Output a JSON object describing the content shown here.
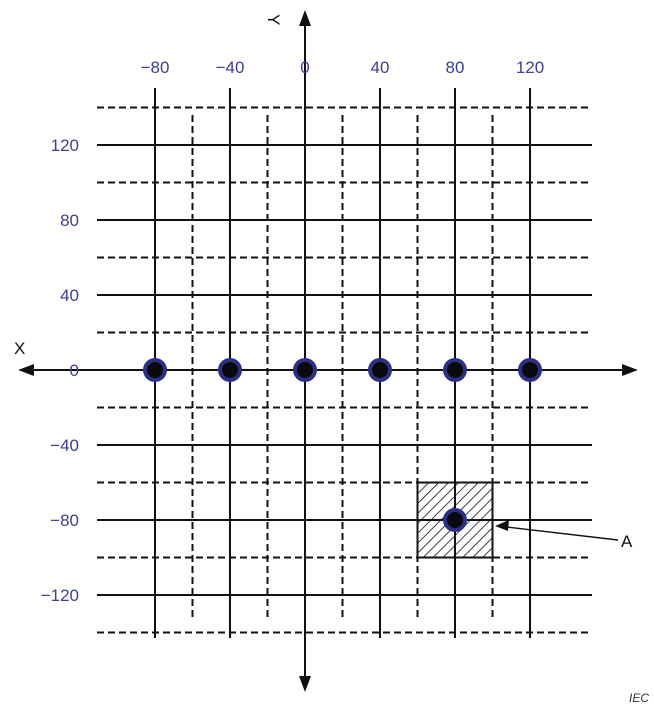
{
  "axes": {
    "x_letter": "X",
    "y_letter": "Y",
    "x_tick_labels": [
      "−80",
      "−40",
      "0",
      "40",
      "80",
      "120"
    ],
    "y_tick_labels": [
      "120",
      "80",
      "40",
      "0",
      "−40",
      "−80",
      "−120"
    ]
  },
  "grid": {
    "solid_x_values": [
      -80,
      -40,
      0,
      40,
      80,
      120
    ],
    "dashed_x_values": [
      -60,
      -20,
      20,
      60,
      100
    ],
    "solid_y_values": [
      120,
      80,
      40,
      -40,
      -80,
      -120
    ],
    "dashed_y_values": [
      140,
      100,
      60,
      20,
      -20,
      -60,
      -100,
      -140
    ]
  },
  "points": [
    {
      "x": -80,
      "y": 0
    },
    {
      "x": -40,
      "y": 0
    },
    {
      "x": 0,
      "y": 0
    },
    {
      "x": 40,
      "y": 0
    },
    {
      "x": 80,
      "y": 0
    },
    {
      "x": 120,
      "y": 0
    },
    {
      "x": 80,
      "y": -80
    }
  ],
  "hatched_region": {
    "x_min": 60,
    "x_max": 100,
    "y_min": -100,
    "y_max": -60
  },
  "callout": {
    "label": "A"
  },
  "source_mark": "IEC",
  "colors": {
    "tick_label": "#3a3f9a",
    "point_ring": "#2b2f86",
    "point_fill": "#0a0a0a",
    "line": "#111111"
  }
}
